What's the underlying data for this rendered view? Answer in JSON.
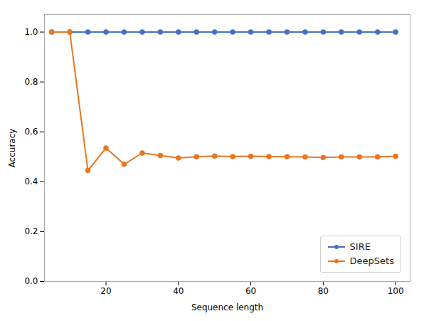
{
  "chart_data": {
    "type": "line",
    "x": [
      5,
      10,
      15,
      20,
      25,
      30,
      35,
      40,
      45,
      50,
      55,
      60,
      65,
      70,
      75,
      80,
      85,
      90,
      95,
      100
    ],
    "series": [
      {
        "name": "SIRE",
        "color": "#4472c4",
        "values": [
          1.0,
          1.0,
          1.0,
          1.0,
          1.0,
          1.0,
          1.0,
          1.0,
          1.0,
          1.0,
          1.0,
          1.0,
          1.0,
          1.0,
          1.0,
          1.0,
          1.0,
          1.0,
          1.0,
          1.0
        ]
      },
      {
        "name": "DeepSets",
        "color": "#e87722",
        "values": [
          1.0,
          1.0,
          0.445,
          0.535,
          0.47,
          0.515,
          0.505,
          0.495,
          0.5,
          0.503,
          0.501,
          0.502,
          0.501,
          0.5,
          0.499,
          0.497,
          0.499,
          0.499,
          0.499,
          0.502
        ]
      }
    ],
    "xlabel": "Sequence length",
    "ylabel": "Accuracy",
    "xlim": [
      3,
      104
    ],
    "ylim": [
      0.0,
      1.07
    ],
    "xticks": [
      20,
      40,
      60,
      80,
      100
    ],
    "yticks": [
      {
        "value": 0,
        "label": "0.0"
      },
      0.2,
      0.4,
      0.6,
      0.8,
      {
        "value": 1,
        "label": "1.0"
      }
    ],
    "legend": "lower right",
    "marker": "circle",
    "grid": false
  }
}
